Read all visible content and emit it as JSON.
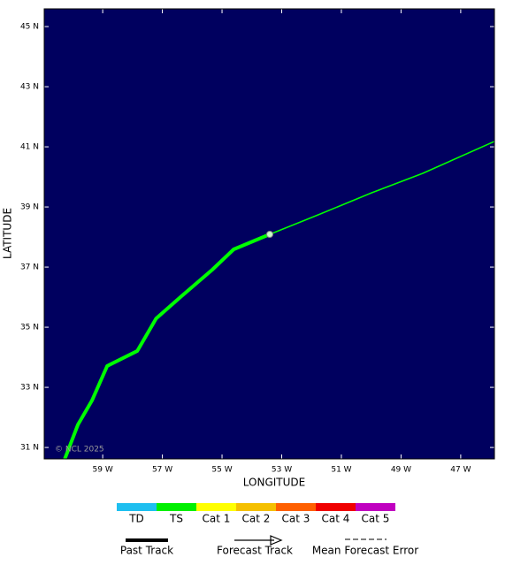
{
  "chart_data": {
    "type": "line",
    "xlabel": "LONGITUDE",
    "ylabel": "LATITUDE",
    "copyright": "© NCL 2025",
    "xlim": [
      -60.96,
      -45.87
    ],
    "ylim": [
      30.62,
      45.59
    ],
    "xticks": [
      {
        "value": -59,
        "label": "59 W"
      },
      {
        "value": -57,
        "label": "57 W"
      },
      {
        "value": -55,
        "label": "55 W"
      },
      {
        "value": -53,
        "label": "53 W"
      },
      {
        "value": -51,
        "label": "51 W"
      },
      {
        "value": -49,
        "label": "49 W"
      },
      {
        "value": -47,
        "label": "47 W"
      }
    ],
    "yticks": [
      {
        "value": 31,
        "label": "31 N"
      },
      {
        "value": 33,
        "label": "33 N"
      },
      {
        "value": 35,
        "label": "35 N"
      },
      {
        "value": 37,
        "label": "37 N"
      },
      {
        "value": 39,
        "label": "39 N"
      },
      {
        "value": 41,
        "label": "41 N"
      },
      {
        "value": 43,
        "label": "43 N"
      },
      {
        "value": 45,
        "label": "45 N"
      }
    ],
    "background": "#00005f",
    "series": [
      {
        "name": "Past Track",
        "color": "#00ff00",
        "x": [
          -60.27,
          -59.83,
          -59.36,
          -58.85,
          -57.84,
          -57.21,
          -56.36,
          -55.33,
          -54.61,
          -53.4
        ],
        "values": [
          30.62,
          31.76,
          32.56,
          33.71,
          34.21,
          35.29,
          36.03,
          36.91,
          37.59,
          38.09
        ]
      },
      {
        "name": "Forecast Track",
        "color": "#00ff00",
        "x": [
          -53.4,
          -51.77,
          -49.99,
          -48.27,
          -45.87
        ],
        "values": [
          38.09,
          38.74,
          39.47,
          40.12,
          41.18
        ]
      }
    ],
    "error_legend": "Mean Forecast Error",
    "intensity_scale": [
      {
        "label": "TD",
        "color": "#1ebff0"
      },
      {
        "label": "TS",
        "color": "#00f000"
      },
      {
        "label": "Cat 1",
        "color": "#ffff00"
      },
      {
        "label": "Cat 2",
        "color": "#f5c000"
      },
      {
        "label": "Cat 3",
        "color": "#ff6000"
      },
      {
        "label": "Cat 4",
        "color": "#f00000"
      },
      {
        "label": "Cat 5",
        "color": "#c000c0"
      }
    ]
  }
}
